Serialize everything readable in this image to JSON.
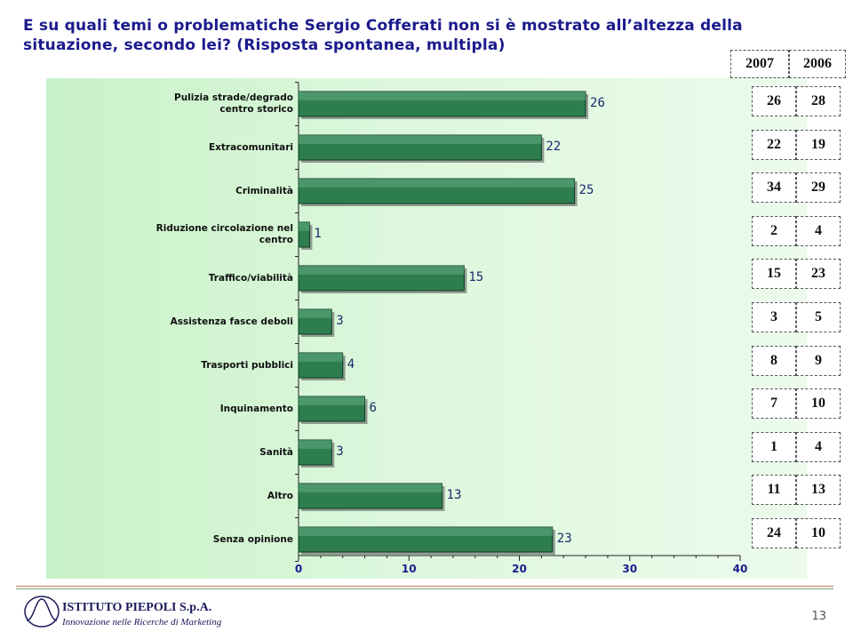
{
  "title": {
    "line1": "E su quali temi o problematiche Sergio Cofferati non si è mostrato all’altezza della",
    "line2": "situazione, secondo lei? (Risposta spontanea, multipla)"
  },
  "chart_data": {
    "type": "bar",
    "orientation": "horizontal",
    "categories": [
      "Pulizia strade/degrado centro storico",
      "Extracomunitari",
      "Criminalità",
      "Riduzione circolazione nel centro",
      "Traffico/viabilità",
      "Assistenza fasce deboli",
      "Trasporti pubblici",
      "Inquinamento",
      "Sanità",
      "Altro",
      "Senza opinione"
    ],
    "category_lines": [
      [
        "Pulizia strade/degrado",
        "centro storico"
      ],
      [
        "Extracomunitari"
      ],
      [
        "Criminalità"
      ],
      [
        "Riduzione circolazione nel",
        "centro"
      ],
      [
        "Traffico/viabilità"
      ],
      [
        "Assistenza fasce deboli"
      ],
      [
        "Trasporti pubblici"
      ],
      [
        "Inquinamento"
      ],
      [
        "Sanità"
      ],
      [
        "Altro"
      ],
      [
        "Senza opinione"
      ]
    ],
    "values": [
      26,
      22,
      25,
      1,
      15,
      3,
      4,
      6,
      3,
      13,
      23
    ],
    "xlim": [
      0,
      40
    ],
    "xticks": [
      0,
      10,
      20,
      30,
      40
    ],
    "bar_color": "#2e7d4f",
    "grid": false
  },
  "comparison": {
    "headers": [
      "2007",
      "2006"
    ],
    "rows": [
      [
        "26",
        "28"
      ],
      [
        "22",
        "19"
      ],
      [
        "34",
        "29"
      ],
      [
        "2",
        "4"
      ],
      [
        "15",
        "23"
      ],
      [
        "3",
        "5"
      ],
      [
        "8",
        "9"
      ],
      [
        "7",
        "10"
      ],
      [
        "1",
        "4"
      ],
      [
        "11",
        "13"
      ],
      [
        "24",
        "10"
      ]
    ]
  },
  "footer": {
    "company": "ISTITUTO PIEPOLI S.p.A.",
    "tagline": "Innovazione nelle Ricerche di Marketing",
    "page": "13"
  }
}
